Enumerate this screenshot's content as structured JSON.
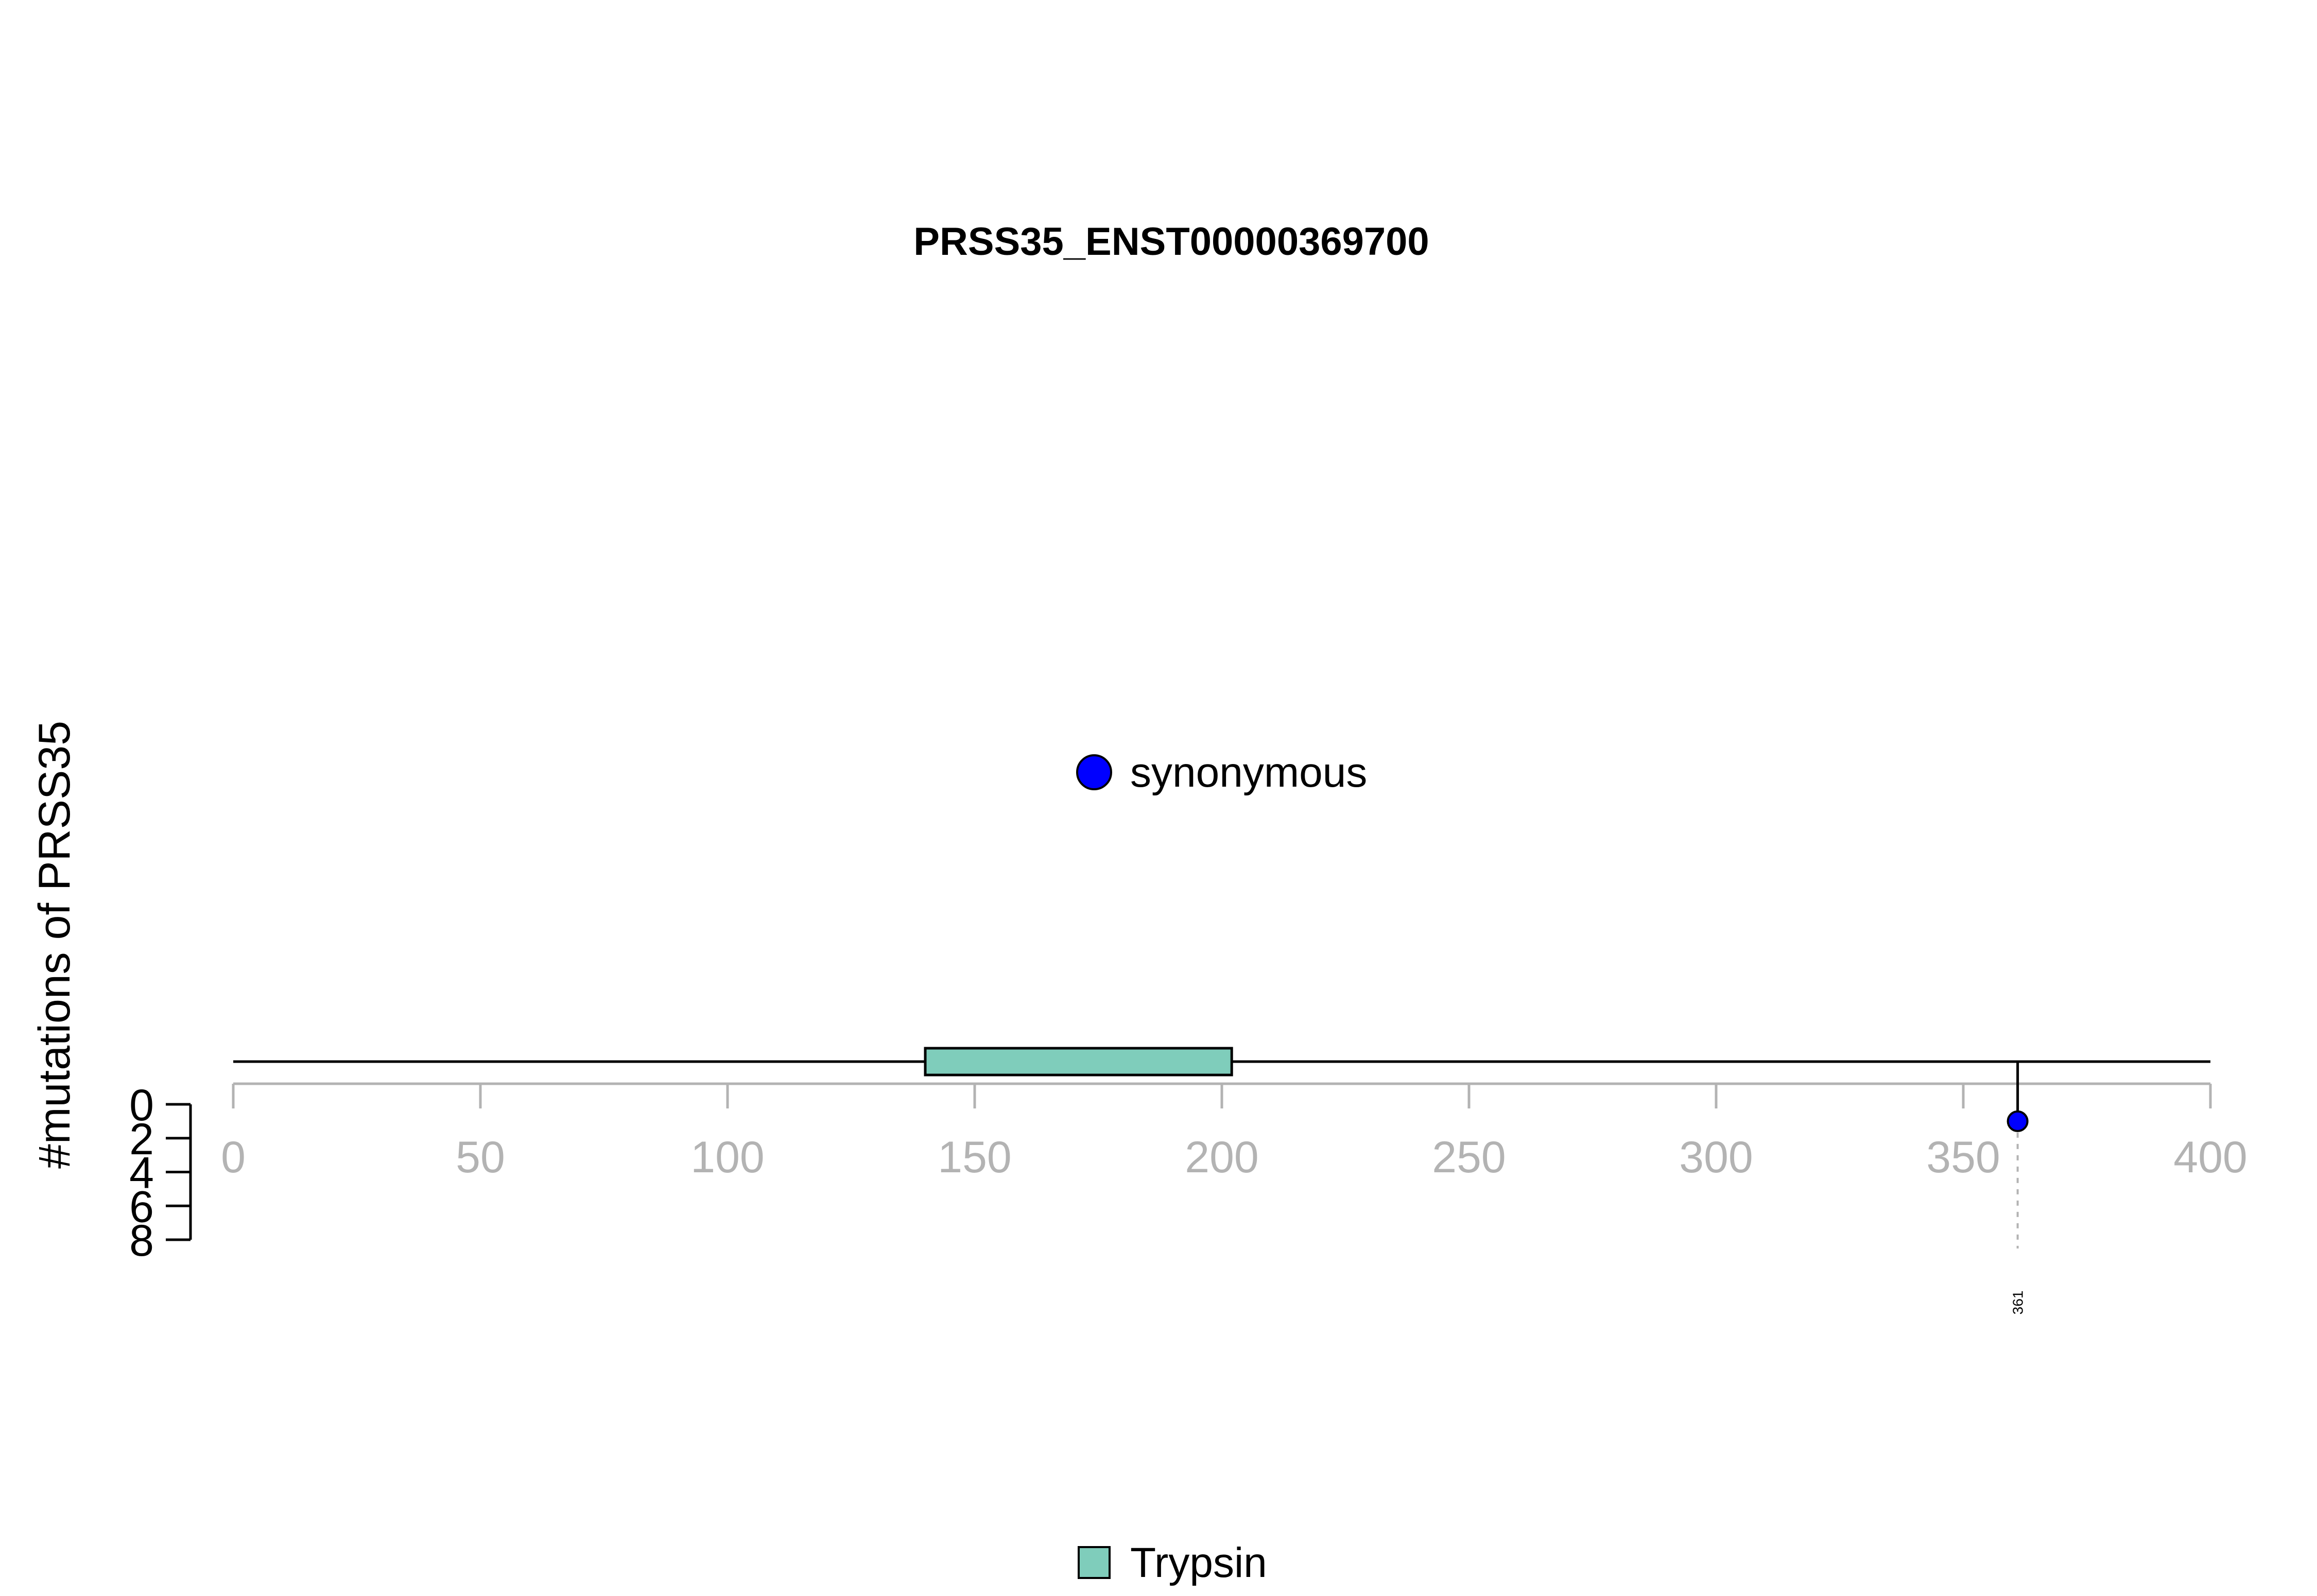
{
  "chart_data": {
    "type": "lollipop",
    "title": "PRSS35_ENST00000369700",
    "ylabel": "#mutations of PRSS35",
    "xlim": [
      0,
      400
    ],
    "x_ticks": [
      0,
      50,
      100,
      150,
      200,
      250,
      300,
      350,
      400
    ],
    "ylim": [
      0,
      8
    ],
    "y_ticks": [
      0,
      2,
      4,
      6,
      8
    ],
    "protein_length": 400,
    "domains": [
      {
        "name": "Trypsin",
        "start": 140,
        "end": 202,
        "color": "#7fcdbb"
      }
    ],
    "mutations": [
      {
        "position": 361,
        "count": 1,
        "type": "synonymous",
        "label": "361",
        "color": "#0000ff"
      }
    ],
    "legend_mutation_types": [
      {
        "label": "synonymous",
        "color": "#0000ff"
      }
    ],
    "legend_domains": [
      {
        "label": "Trypsin",
        "color": "#7fcdbb"
      }
    ]
  }
}
